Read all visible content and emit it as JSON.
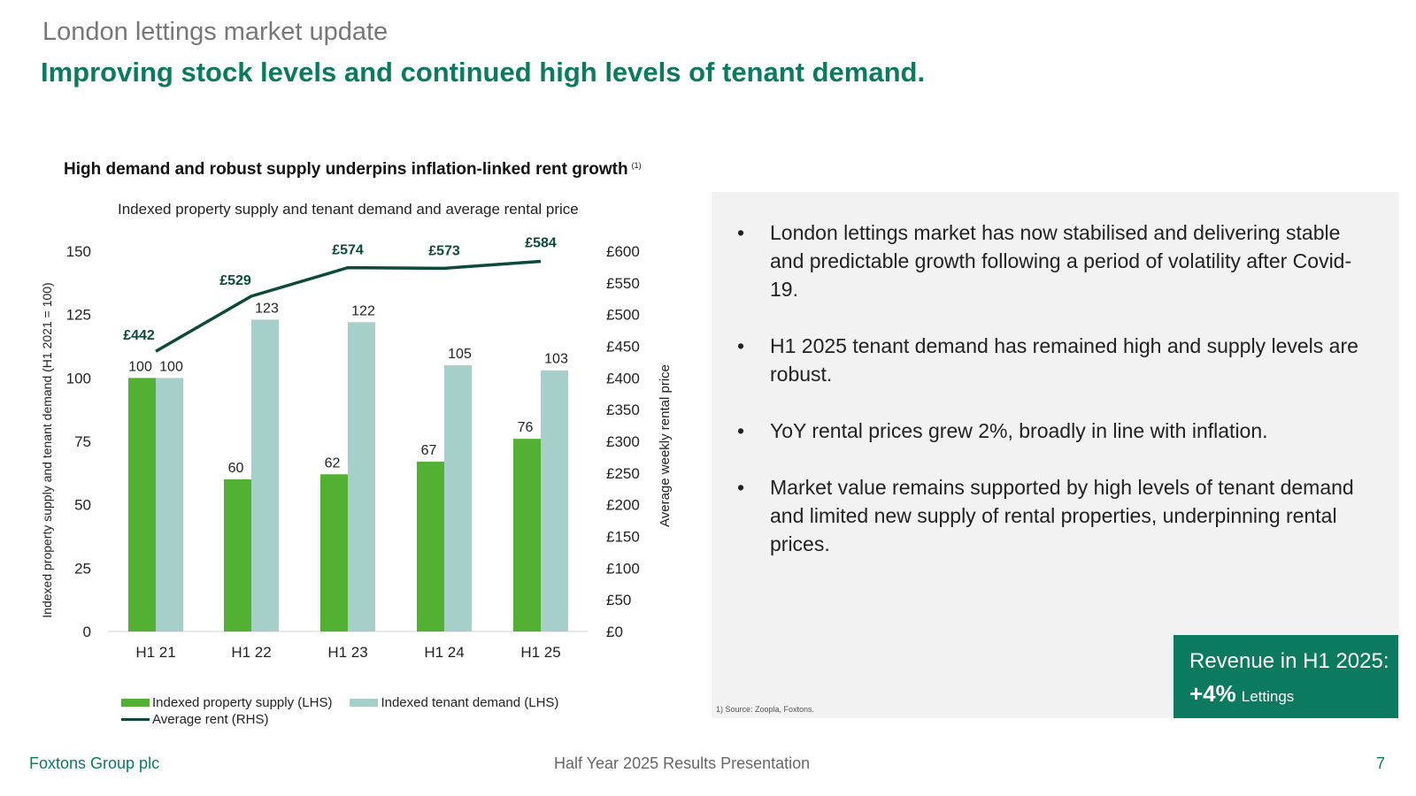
{
  "slide": {
    "kicker": "London lettings market update",
    "headline": "Improving stock levels and continued high levels of tenant demand."
  },
  "chart_title": "High demand and robust supply underpins inflation-linked rent growth",
  "chart_title_note": "(1)",
  "chart_subtitle": "Indexed property supply and tenant demand and average rental price",
  "chart_data": {
    "type": "bar",
    "categories": [
      "H1 21",
      "H1 22",
      "H1 23",
      "H1 24",
      "H1 25"
    ],
    "series": [
      {
        "name": "Indexed property supply (LHS)",
        "type": "bar",
        "axis": "left",
        "values": [
          100,
          60,
          62,
          67,
          76
        ],
        "color": "#52b033"
      },
      {
        "name": "Indexed tenant demand (LHS)",
        "type": "bar",
        "axis": "left",
        "values": [
          100,
          123,
          122,
          105,
          103
        ],
        "color": "#a6cfc9"
      },
      {
        "name": "Average rent (RHS)",
        "type": "line",
        "axis": "right",
        "values": [
          442,
          529,
          574,
          573,
          584
        ],
        "labels": [
          "£442",
          "£529",
          "£574",
          "£573",
          "£584"
        ],
        "color": "#0d4a3b"
      }
    ],
    "ylabel_left": "Indexed property supply and tenant demand (H1 2021 = 100)",
    "ylabel_right": "Average weekly rental price",
    "ylim_left": [
      0,
      150
    ],
    "ylim_right": [
      0,
      600
    ],
    "yticks_left": [
      "0",
      "25",
      "50",
      "75",
      "100",
      "125",
      "150"
    ],
    "yticks_right": [
      "£0",
      "£50",
      "£100",
      "£150",
      "£200",
      "£250",
      "£300",
      "£350",
      "£400",
      "£450",
      "£500",
      "£550",
      "£600"
    ],
    "grid": false,
    "legend": "bottom"
  },
  "legend": {
    "supply": "Indexed property supply (LHS)",
    "demand": "Indexed tenant demand (LHS)",
    "rent": "Average rent (RHS)"
  },
  "bullets": [
    "London lettings market has now stabilised and delivering stable and predictable growth following a period of volatility after Covid-19.",
    "H1 2025 tenant demand has remained high and supply levels are robust.",
    "YoY rental prices grew 2%, broadly in line with inflation.",
    "Market value remains supported by high levels of tenant demand and limited new supply of rental properties, underpinning rental prices."
  ],
  "bullet_symbol": "•",
  "source_note": "1) Source: Zoopla, Foxtons.",
  "revenue_box": {
    "line1": "Revenue in H1 2025:",
    "value": "+4%",
    "segment": "Lettings"
  },
  "footer": {
    "left": "Foxtons Group plc",
    "center": "Half Year 2025 Results Presentation",
    "page": "7"
  },
  "colors": {
    "brand_green": "#0b7a5f",
    "supply_bar": "#52b033",
    "demand_bar": "#a6cfc9",
    "rent_line": "#0d4a3b",
    "panel_bg": "#f2f2f2"
  }
}
